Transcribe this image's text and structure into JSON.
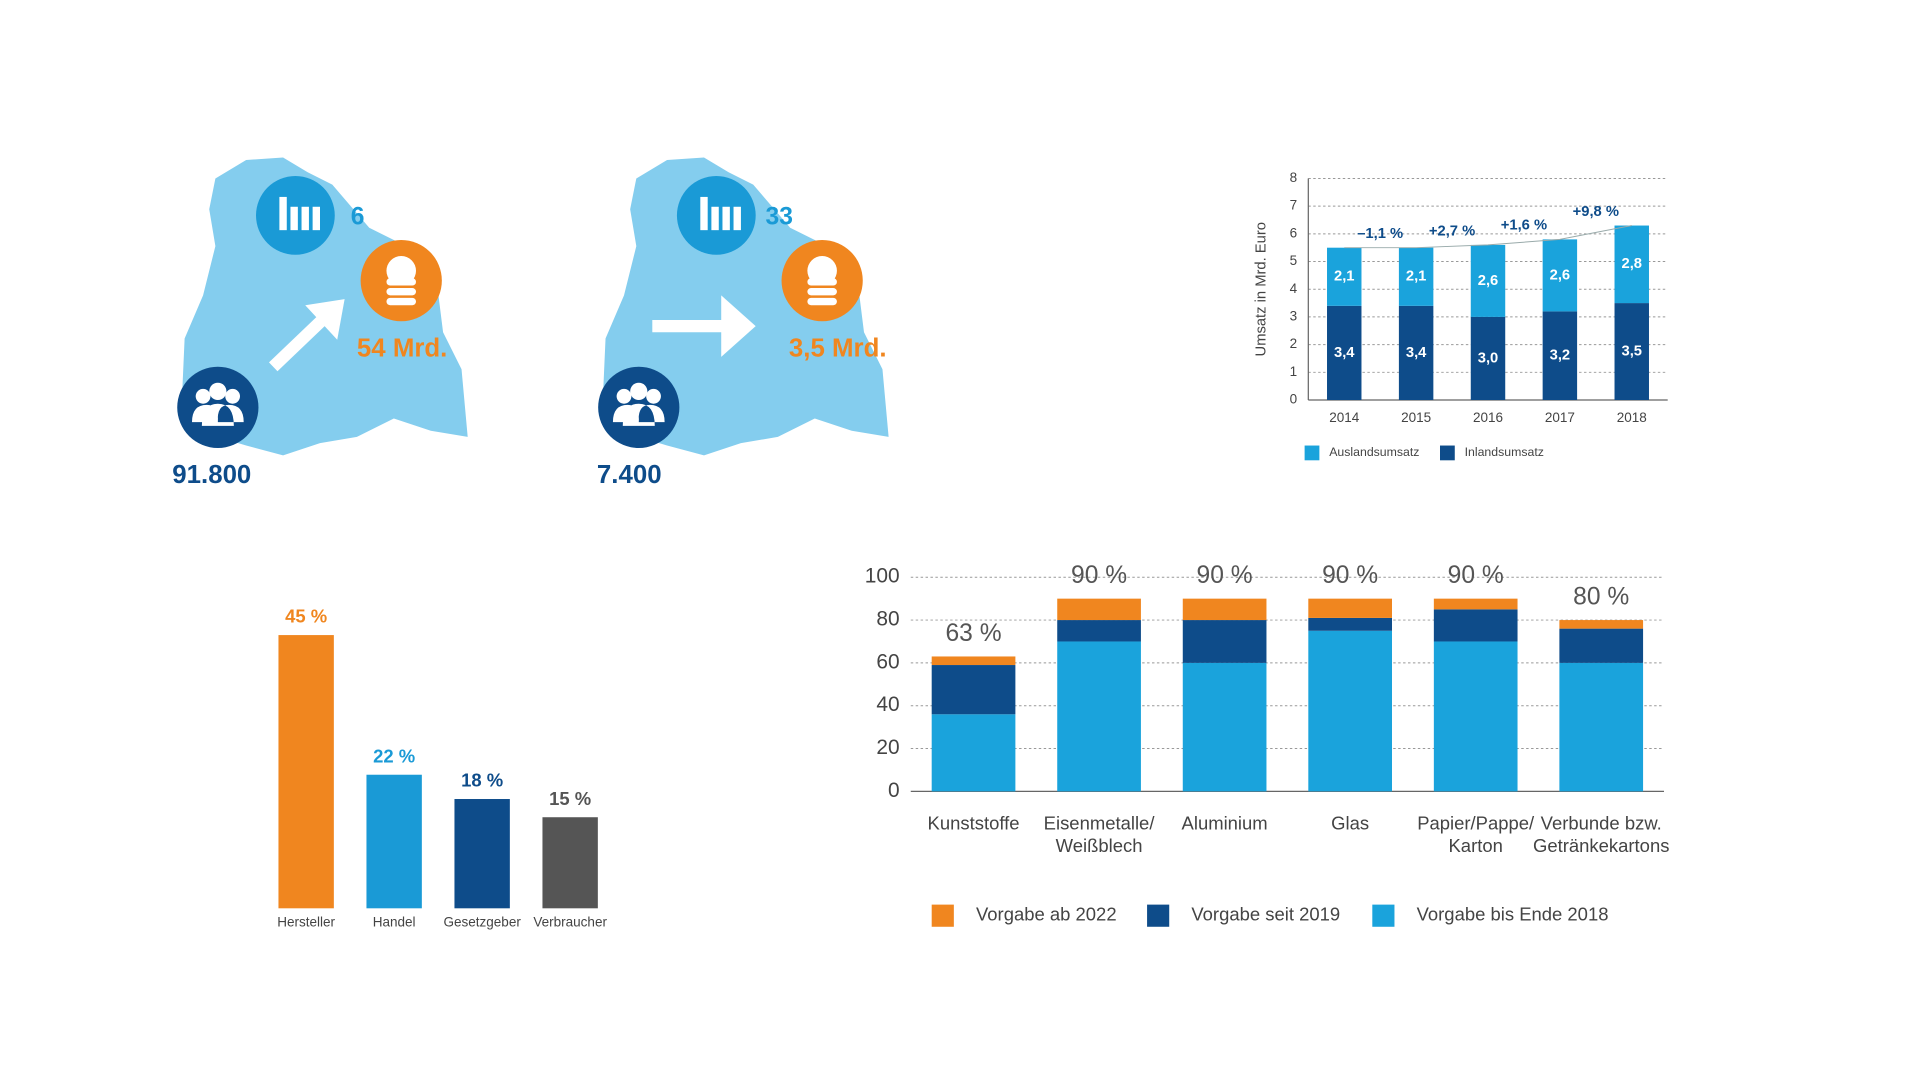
{
  "infographics": [
    {
      "plants": "6",
      "revenue": "54 Mrd.",
      "employees": "91.800"
    },
    {
      "plants": "33",
      "revenue": "3,5 Mrd.",
      "employees": "7.400"
    }
  ],
  "chart_data": [
    {
      "type": "stacked_bar",
      "ylabel": "Umsatz in Mrd. Euro",
      "categories": [
        "2014",
        "2015",
        "2016",
        "2017",
        "2018"
      ],
      "series": [
        {
          "name": "Auslandsumsatz",
          "color": "#1aa3dc",
          "values": [
            2.1,
            2.1,
            2.6,
            2.6,
            2.8
          ],
          "value_labels": [
            "2,1",
            "2,1",
            "2,6",
            "2,6",
            "2,8"
          ]
        },
        {
          "name": "Inlandsumsatz",
          "color": "#0e4c8a",
          "values": [
            3.4,
            3.4,
            3.0,
            3.2,
            3.5
          ],
          "value_labels": [
            "3,4",
            "3,4",
            "3,0",
            "3,2",
            "3,5"
          ]
        }
      ],
      "annotations": [
        "–1,1 %",
        "+2,7 %",
        "+1,6 %",
        "+9,8 %"
      ],
      "ylim": [
        0,
        8
      ],
      "yticks": [
        0,
        1,
        2,
        3,
        4,
        5,
        6,
        7,
        8
      ],
      "grid": true
    },
    {
      "type": "bar",
      "categories": [
        "Hersteller",
        "Handel",
        "Gesetzgeber",
        "Verbraucher"
      ],
      "values": [
        45,
        22,
        18,
        15
      ],
      "value_labels": [
        "45 %",
        "22 %",
        "18 %",
        "15 %"
      ],
      "colors": [
        "#f0861f",
        "#1a9ad6",
        "#0e4c8a",
        "#555555"
      ]
    },
    {
      "type": "stacked_bar",
      "categories": [
        "Kunststoffe",
        "Eisenmetalle/\nWeißblech",
        "Aluminium",
        "Glas",
        "Papier/Pappe/\nKarton",
        "Verbunde bzw.\nGetränkekartons"
      ],
      "series": [
        {
          "name": "Vorgabe ab 2022",
          "color": "#f0861f",
          "values": [
            4,
            10,
            10,
            9,
            5,
            4
          ]
        },
        {
          "name": "Vorgabe seit 2019",
          "color": "#0e4c8a",
          "values": [
            23,
            10,
            20,
            6,
            15,
            16
          ]
        },
        {
          "name": "Vorgabe bis Ende 2018",
          "color": "#1aa3dc",
          "values": [
            36,
            70,
            60,
            75,
            70,
            60
          ]
        }
      ],
      "totals": [
        63,
        90,
        90,
        90,
        90,
        80
      ],
      "total_labels": [
        "63 %",
        "90 %",
        "90 %",
        "90 %",
        "90 %",
        "80 %"
      ],
      "ylim": [
        0,
        100
      ],
      "yticks": [
        0,
        20,
        40,
        60,
        80,
        100
      ],
      "grid": true
    }
  ]
}
